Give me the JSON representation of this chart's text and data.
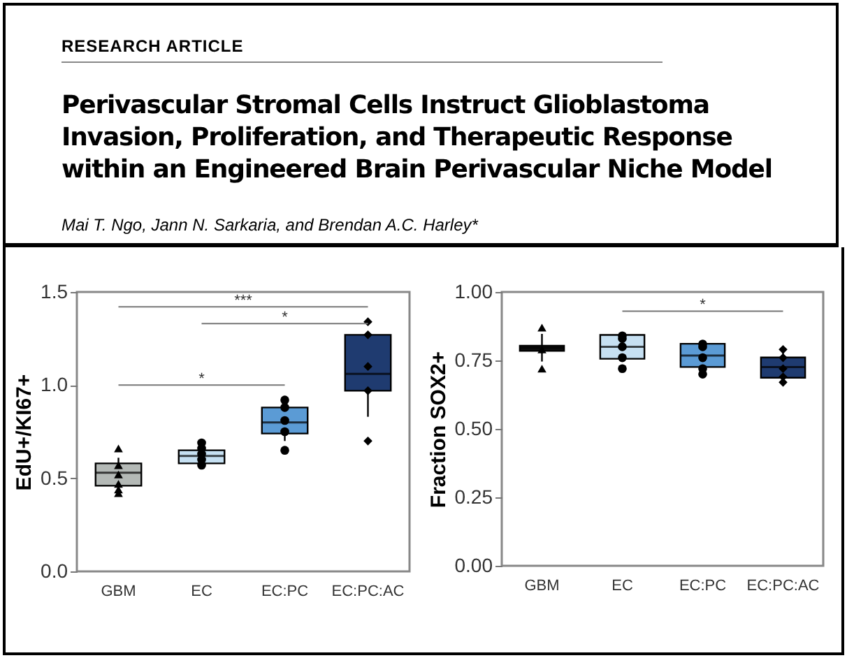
{
  "chart_data": [
    {
      "type": "other",
      "title": "Perivascular Stromal Cells Instruct Glioblastoma Invasion, Proliferation, and Therapeutic Response within an Engineered Brain Perivascular Niche Model",
      "annotations": [
        "RESEARCH ARTICLE",
        "Mai T. Ngo, Jann N. Sarkaria, and Brendan A.C. Harley*"
      ]
    },
    {
      "type": "box",
      "ylabel": "EdU+/KI67+",
      "categories": [
        "GBM",
        "EC",
        "EC:PC",
        "EC:PC:AC"
      ],
      "colors": [
        "#b4b9b6",
        "#c6e0f2",
        "#5b9bd5",
        "#1f3b70"
      ],
      "boxes": [
        {
          "low": 0.43,
          "q1": 0.46,
          "median": 0.53,
          "q3": 0.58,
          "high": 0.61
        },
        {
          "low": 0.56,
          "q1": 0.58,
          "median": 0.62,
          "q3": 0.65,
          "high": 0.67
        },
        {
          "low": 0.7,
          "q1": 0.74,
          "median": 0.8,
          "q3": 0.88,
          "high": 0.88
        },
        {
          "low": 0.83,
          "q1": 0.97,
          "median": 1.06,
          "q3": 1.27,
          "high": 1.28
        }
      ],
      "series": [
        {
          "type": "scatter",
          "marker": "triangle",
          "color": "#000000",
          "x": [
            "GBM",
            "GBM",
            "GBM",
            "GBM",
            "GBM",
            "GBM"
          ],
          "values": [
            0.66,
            0.57,
            0.52,
            0.47,
            0.44,
            0.42
          ]
        },
        {
          "type": "scatter",
          "marker": "circle",
          "color": "#000000",
          "x": [
            "EC",
            "EC",
            "EC",
            "EC",
            "EC",
            "EC:PC",
            "EC:PC",
            "EC:PC",
            "EC:PC",
            "EC:PC"
          ],
          "values": [
            0.69,
            0.66,
            0.63,
            0.6,
            0.57,
            0.92,
            0.88,
            0.81,
            0.75,
            0.65
          ]
        },
        {
          "type": "scatter",
          "marker": "diamond",
          "color": "#000000",
          "x": [
            "EC:PC:AC",
            "EC:PC:AC",
            "EC:PC:AC",
            "EC:PC:AC",
            "EC:PC:AC"
          ],
          "values": [
            1.34,
            1.27,
            1.1,
            0.97,
            0.7
          ]
        }
      ],
      "ylim": [
        0,
        1.5
      ],
      "yticks": [
        {
          "value": 0,
          "label": "0.0"
        },
        {
          "value": 0.5,
          "label": "0.5"
        },
        {
          "value": 1,
          "label": "1.0"
        },
        {
          "value": 1.5,
          "label": "1.5"
        }
      ],
      "annotations": [
        "***",
        "*",
        "*"
      ]
    },
    {
      "type": "box",
      "ylabel": "Fraction SOX2+",
      "categories": [
        "GBM",
        "EC",
        "EC:PC",
        "EC:PC:AC"
      ],
      "colors": [
        "#111111",
        "#c6e0f2",
        "#5b9bd5",
        "#1f3b70"
      ],
      "boxes": [
        {
          "low": 0.746,
          "q1": 0.785,
          "median": 0.796,
          "q3": 0.804,
          "high": 0.847
        },
        {
          "low": 0.756,
          "q1": 0.756,
          "median": 0.8,
          "q3": 0.843,
          "high": 0.843
        },
        {
          "low": 0.726,
          "q1": 0.726,
          "median": 0.768,
          "q3": 0.811,
          "high": 0.811
        },
        {
          "low": 0.687,
          "q1": 0.687,
          "median": 0.726,
          "q3": 0.761,
          "high": 0.787
        }
      ],
      "series": [
        {
          "type": "scatter",
          "marker": "triangle",
          "color": "#000000",
          "x": [
            "GBM",
            "GBM",
            "GBM"
          ],
          "values": [
            0.87,
            0.79,
            0.72
          ]
        },
        {
          "type": "scatter",
          "marker": "circle",
          "color": "#000000",
          "x": [
            "EC",
            "EC",
            "EC",
            "EC",
            "EC",
            "EC:PC",
            "EC:PC",
            "EC:PC",
            "EC:PC",
            "EC:PC"
          ],
          "values": [
            0.84,
            0.83,
            0.8,
            0.76,
            0.72,
            0.81,
            0.8,
            0.76,
            0.72,
            0.7
          ]
        },
        {
          "type": "scatter",
          "marker": "diamond",
          "color": "#000000",
          "x": [
            "EC:PC:AC",
            "EC:PC:AC",
            "EC:PC:AC",
            "EC:PC:AC",
            "EC:PC:AC"
          ],
          "values": [
            0.79,
            0.76,
            0.72,
            0.69,
            0.67
          ]
        }
      ],
      "ylim": [
        0,
        1
      ],
      "yticks": [
        {
          "value": 0,
          "label": "0.00"
        },
        {
          "value": 0.25,
          "label": "0.25"
        },
        {
          "value": 0.5,
          "label": "0.50"
        },
        {
          "value": 0.75,
          "label": "0.75"
        },
        {
          "value": 1,
          "label": "1.00"
        }
      ],
      "annotations": [
        "*"
      ]
    }
  ]
}
